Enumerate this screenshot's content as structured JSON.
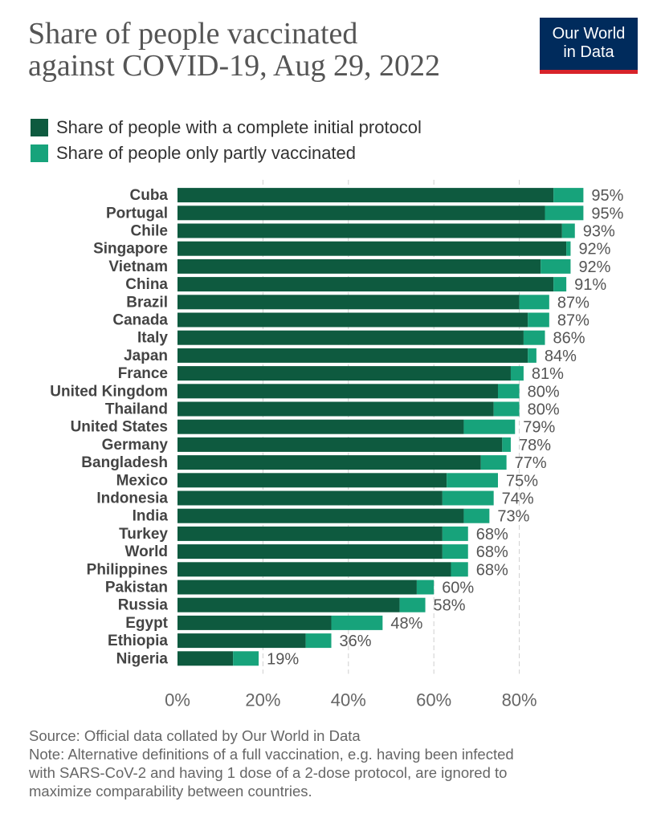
{
  "chart_data": {
    "type": "bar",
    "orientation": "horizontal",
    "stacked": true,
    "title_lines": [
      "Share of people vaccinated",
      "against COVID-19, Aug 29, 2022"
    ],
    "categories": [
      "Cuba",
      "Portugal",
      "Chile",
      "Singapore",
      "Vietnam",
      "China",
      "Brazil",
      "Canada",
      "Italy",
      "Japan",
      "France",
      "United Kingdom",
      "Thailand",
      "United States",
      "Germany",
      "Bangladesh",
      "Mexico",
      "Indonesia",
      "India",
      "Turkey",
      "World",
      "Philippines",
      "Pakistan",
      "Russia",
      "Egypt",
      "Ethiopia",
      "Nigeria"
    ],
    "series": [
      {
        "name": "Share of people with a complete initial protocol",
        "color": "#0e5a3f",
        "values": [
          88,
          86,
          90,
          91,
          85,
          88,
          80,
          82,
          81,
          82,
          78,
          75,
          74,
          67,
          76,
          71,
          63,
          62,
          67,
          62,
          62,
          64,
          56,
          52,
          36,
          30,
          13
        ]
      },
      {
        "name": "Share of people only partly vaccinated",
        "color": "#17a37b",
        "values": [
          7,
          9,
          3,
          1,
          7,
          3,
          7,
          5,
          5,
          2,
          3,
          5,
          6,
          12,
          2,
          6,
          12,
          12,
          6,
          6,
          6,
          4,
          4,
          6,
          12,
          6,
          6
        ]
      }
    ],
    "labels": [
      "95%",
      "95%",
      "93%",
      "92%",
      "92%",
      "91%",
      "87%",
      "87%",
      "86%",
      "84%",
      "81%",
      "80%",
      "80%",
      "79%",
      "78%",
      "77%",
      "75%",
      "74%",
      "73%",
      "68%",
      "68%",
      "68%",
      "60%",
      "58%",
      "48%",
      "36%",
      "19%"
    ],
    "x_ticks": [
      0,
      20,
      40,
      60,
      80
    ],
    "x_tick_labels": [
      "0%",
      "20%",
      "40%",
      "60%",
      "80%"
    ],
    "xlim": [
      0,
      100
    ],
    "grid": "vertical dashed",
    "legend": "top-left"
  },
  "brand": {
    "line1": "Our World",
    "line2": "in Data"
  },
  "footer": {
    "source": "Source: Official data collated by Our World in Data",
    "note_lines": [
      "Note: Alternative definitions of a full vaccination, e.g. having been infected",
      "with SARS-CoV-2 and having 1 dose of a 2-dose protocol, are ignored to",
      "maximize comparability between countries."
    ]
  },
  "colors": {
    "brand_bg": "#002b5c",
    "brand_accent": "#d8232a"
  }
}
